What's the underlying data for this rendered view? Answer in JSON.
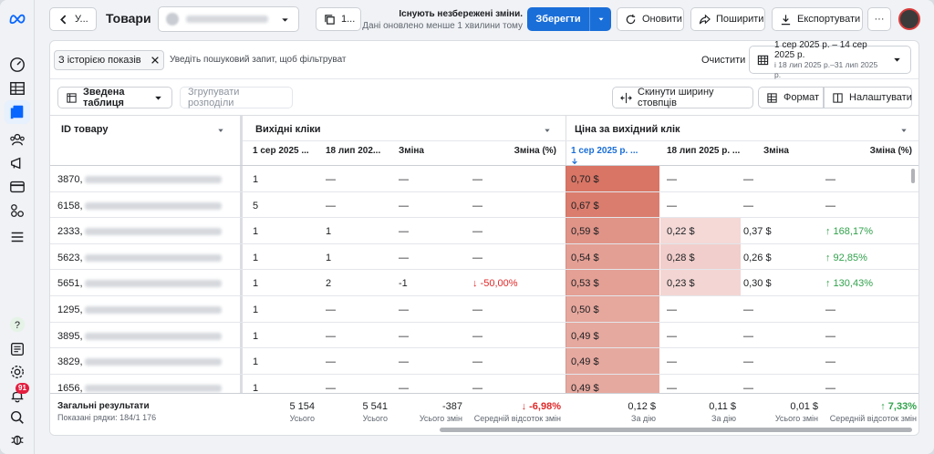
{
  "sidebar": {
    "notif_count": "91"
  },
  "topbar": {
    "back_label": "У...",
    "title": "Товари",
    "account_count": "1...",
    "unsaved": "Існують незбережені зміни.",
    "updated": "Дані оновлено менше 1 хвилини тому",
    "save": "Зберегти",
    "refresh": "Оновити",
    "share": "Поширити",
    "export": "Експортувати",
    "more": "···"
  },
  "filter": {
    "chip": "З історією показів",
    "search_placeholder": "Уведіть пошуковий запит, щоб фільтруват",
    "clear": "Очистити",
    "date_main": "1 сер 2025 р. – 14 сер 2025 р.",
    "date_compare": "і 18 лип 2025 р.–31 лип 2025 р."
  },
  "toolbar": {
    "view": "Зведена таблиця",
    "group": "Згрупувати розподіли",
    "reset_width": "Скинути ширину стовпців",
    "format": "Формат",
    "settings": "Налаштувати"
  },
  "table": {
    "id_header": "ID товару",
    "g1_header": "Вихідні кліки",
    "g2_header": "Ціна за вихідний клік",
    "sub": [
      "1 сер 2025 ...",
      "18 лип 202...",
      "Зміна",
      "Зміна (%)",
      "1 сер 2025 р. ...",
      "18 лип 2025 р. ...",
      "Зміна",
      "Зміна (%)"
    ],
    "rows": [
      {
        "id": "3870",
        "c": [
          "1",
          "—",
          "—",
          "—",
          "0,70 $",
          "—",
          "—",
          "—"
        ],
        "h": 0.9
      },
      {
        "id": "6158",
        "c": [
          "5",
          "—",
          "—",
          "—",
          "0,67 $",
          "—",
          "—",
          "—"
        ],
        "h": 0.82
      },
      {
        "id": "2333",
        "c": [
          "1",
          "1",
          "—",
          "—",
          "0,59 $",
          "0,22 $",
          "0,37 $",
          "↑ 168,17%"
        ],
        "h": 0.6,
        "h2": 0.28
      },
      {
        "id": "5623",
        "c": [
          "1",
          "1",
          "—",
          "—",
          "0,54 $",
          "0,28 $",
          "0,26 $",
          "↑ 92,85%"
        ],
        "h": 0.5,
        "h2": 0.36
      },
      {
        "id": "5651",
        "c": [
          "1",
          "2",
          "-1",
          "↓ -50,00%",
          "0,53 $",
          "0,23 $",
          "0,30 $",
          "↑ 130,43%"
        ],
        "h": 0.48,
        "h2": 0.3
      },
      {
        "id": "1295",
        "c": [
          "1",
          "—",
          "—",
          "—",
          "0,50 $",
          "—",
          "—",
          "—"
        ],
        "h": 0.42
      },
      {
        "id": "3895",
        "c": [
          "1",
          "—",
          "—",
          "—",
          "0,49 $",
          "—",
          "—",
          "—"
        ],
        "h": 0.4
      },
      {
        "id": "3829",
        "c": [
          "1",
          "—",
          "—",
          "—",
          "0,49 $",
          "—",
          "—",
          "—"
        ],
        "h": 0.4
      },
      {
        "id": "1656",
        "c": [
          "1",
          "—",
          "—",
          "—",
          "0,49 $",
          "—",
          "—",
          "—"
        ],
        "h": 0.4
      }
    ]
  },
  "footer": {
    "title": "Загальні результати",
    "shown": "Показані рядки: 184/1 176",
    "values": [
      "5 154",
      "5 541",
      "-387",
      "↓ -6,98%",
      "0,12 $",
      "0,11 $",
      "0,01 $",
      "↑ 7,33%"
    ],
    "labels": [
      "Усього",
      "Усього",
      "Усього змін",
      "Середній відсоток змін",
      "За дію",
      "За дію",
      "Усього змін",
      "Середній відсоток змін"
    ]
  }
}
